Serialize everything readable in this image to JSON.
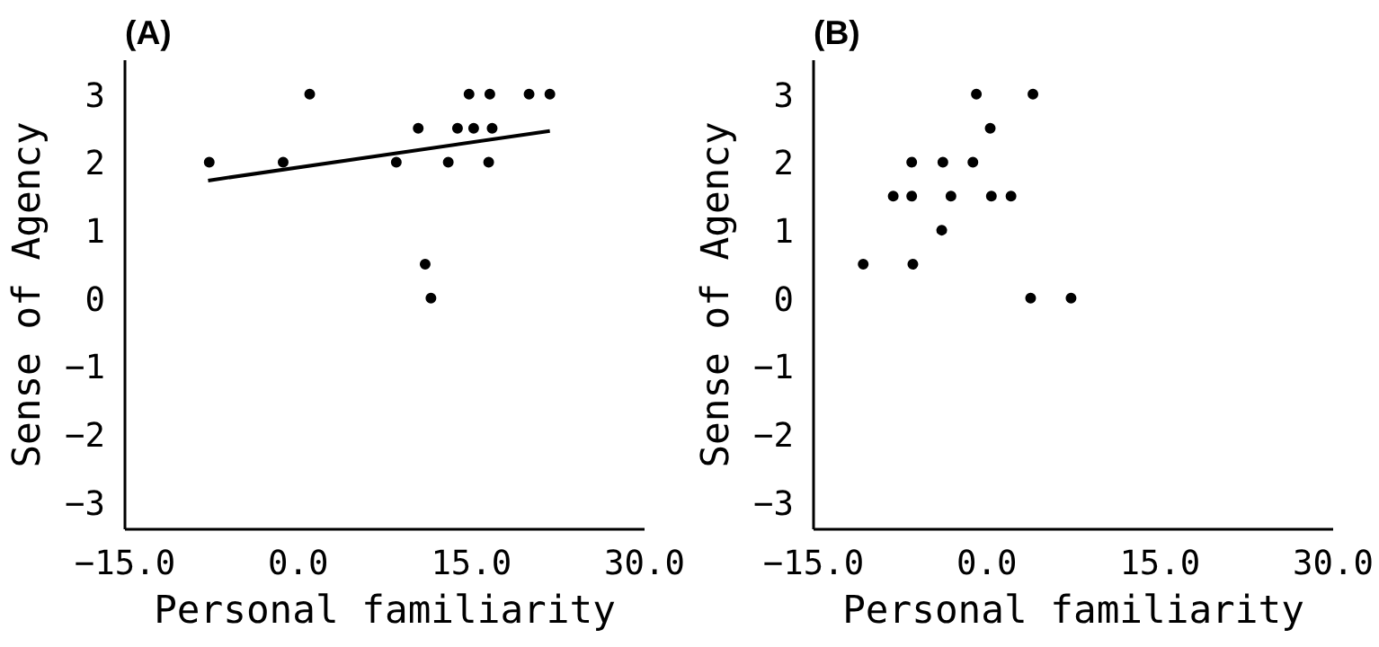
{
  "chart_data": [
    {
      "type": "scatter",
      "title": "(A)",
      "xlabel": "Personal familiarity",
      "ylabel": "Sense of Agency",
      "xlim": [
        -15,
        30
      ],
      "ylim": [
        -3.4,
        3.5
      ],
      "xticks": [
        {
          "value": -15,
          "label": "−15.0"
        },
        {
          "value": 0,
          "label": "0.0"
        },
        {
          "value": 15,
          "label": "15.0"
        },
        {
          "value": 30,
          "label": "30.0"
        }
      ],
      "yticks": [
        {
          "value": -3,
          "label": "−3"
        },
        {
          "value": -2,
          "label": "−2"
        },
        {
          "value": -1,
          "label": "−1"
        },
        0,
        1,
        2,
        3
      ],
      "grid": false,
      "series": [
        {
          "marker": "circle",
          "color": "#000000",
          "x": [
            -7.7,
            -1.3,
            1.0,
            8.5,
            10.4,
            11.0,
            11.5,
            13.0,
            13.8,
            14.8,
            15.2,
            16.5,
            16.6,
            16.8,
            20.0,
            21.8
          ],
          "values": [
            2,
            2,
            3,
            2,
            2.5,
            0.5,
            0,
            2,
            2.5,
            3,
            2.5,
            2,
            3,
            2.5,
            3,
            3
          ]
        },
        {
          "type": "line",
          "color": "#000000",
          "line_style": "solid",
          "x": [
            -7.8,
            21.8
          ],
          "values": [
            1.73,
            2.46
          ]
        }
      ]
    },
    {
      "type": "scatter",
      "title": "(B)",
      "xlabel": "Personal familiarity",
      "ylabel": "Sense of Agency",
      "xlim": [
        -15,
        30
      ],
      "ylim": [
        -3.4,
        3.5
      ],
      "xticks": [
        {
          "value": -15,
          "label": "−15.0"
        },
        {
          "value": 0,
          "label": "0.0"
        },
        {
          "value": 15,
          "label": "15.0"
        },
        {
          "value": 30,
          "label": "30.0"
        }
      ],
      "yticks": [
        {
          "value": -3,
          "label": "−3"
        },
        {
          "value": -2,
          "label": "−2"
        },
        {
          "value": -1,
          "label": "−1"
        },
        0,
        1,
        2,
        3
      ],
      "grid": false,
      "series": [
        {
          "marker": "circle",
          "color": "#000000",
          "x": [
            -10.7,
            -8.1,
            -6.5,
            -6.5,
            -6.4,
            -3.9,
            -3.8,
            -3.1,
            -1.2,
            -0.9,
            0.3,
            0.4,
            2.1,
            3.8,
            4.0,
            7.3
          ],
          "values": [
            0.5,
            1.5,
            1.5,
            2,
            0.5,
            1,
            2,
            1.5,
            2,
            3,
            2.5,
            1.5,
            1.5,
            0,
            3,
            0
          ]
        }
      ]
    }
  ]
}
